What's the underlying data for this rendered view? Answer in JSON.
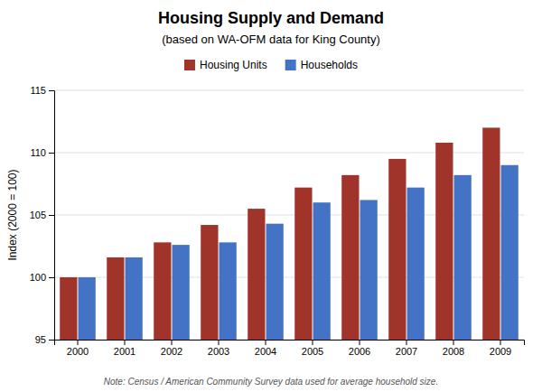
{
  "chart_data": {
    "type": "bar",
    "title": "Housing Supply and Demand",
    "subtitle": "(based on WA-OFM data for King County)",
    "footnote": "Note: Census / American Community Survey data used for average household size.",
    "y_label": "Index (2000 = 100)",
    "categories": [
      "2000",
      "2001",
      "2002",
      "2003",
      "2004",
      "2005",
      "2006",
      "2007",
      "2008",
      "2009"
    ],
    "series": [
      {
        "name": "Housing Units",
        "color": "#A0342A",
        "values": [
          100.0,
          101.6,
          102.8,
          104.2,
          105.5,
          107.2,
          108.2,
          109.5,
          110.8,
          112.0
        ]
      },
      {
        "name": "Households",
        "color": "#4472C4",
        "values": [
          100.0,
          101.6,
          102.6,
          102.8,
          104.3,
          106.0,
          106.2,
          107.2,
          108.2,
          109.0
        ]
      }
    ],
    "ylim": [
      95,
      115
    ],
    "yticks": [
      95,
      100,
      105,
      110,
      115
    ],
    "grid": true,
    "legend": "top"
  }
}
